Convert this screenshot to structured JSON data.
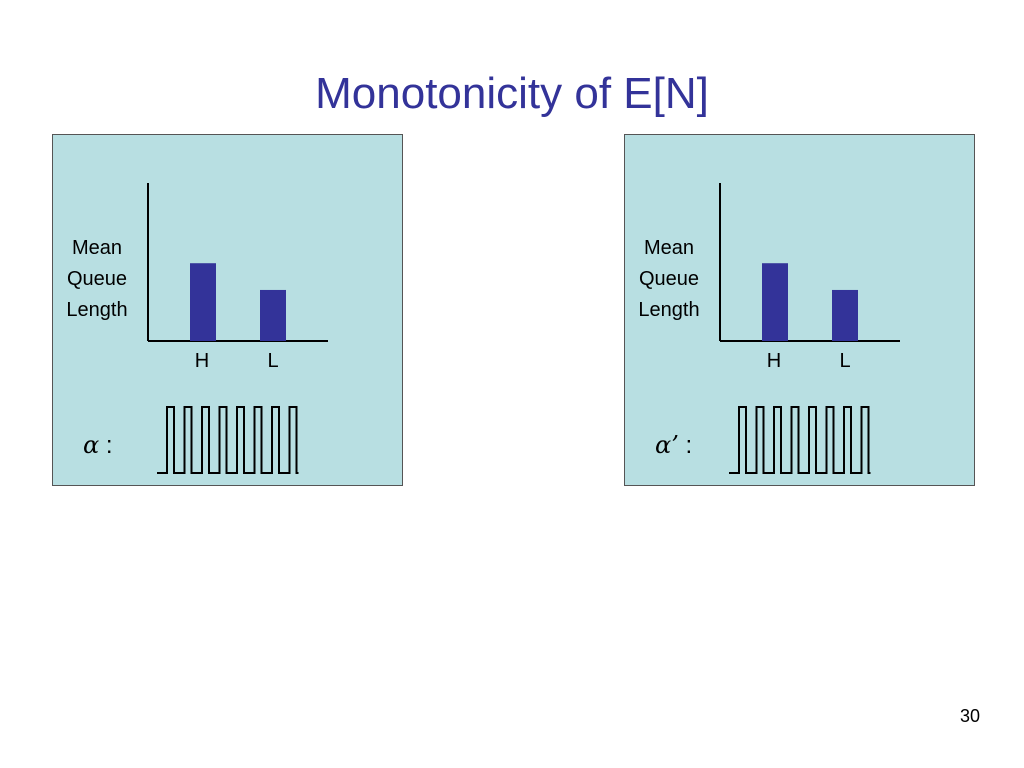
{
  "slide": {
    "title": "Monotonicity of E[N]",
    "page_number": "30",
    "colors": {
      "title": "#333399",
      "panel_background": "#b8dfe2",
      "bar": "#333399"
    }
  },
  "chart_data": [
    {
      "type": "bar",
      "categories": [
        "H",
        "L"
      ],
      "values": [
        3.2,
        2.1
      ],
      "ylabel": "Mean Queue Length",
      "ylim": [
        0,
        6.5
      ],
      "grid": false,
      "policy_symbol": "α",
      "policy_suffix": " :",
      "square_wave_pulses": 8
    },
    {
      "type": "bar",
      "categories": [
        "H",
        "L"
      ],
      "values": [
        3.2,
        2.1
      ],
      "ylabel": "Mean Queue Length",
      "ylim": [
        0,
        6.5
      ],
      "grid": false,
      "policy_symbol": "α’",
      "policy_suffix": " :",
      "square_wave_pulses": 8
    }
  ]
}
